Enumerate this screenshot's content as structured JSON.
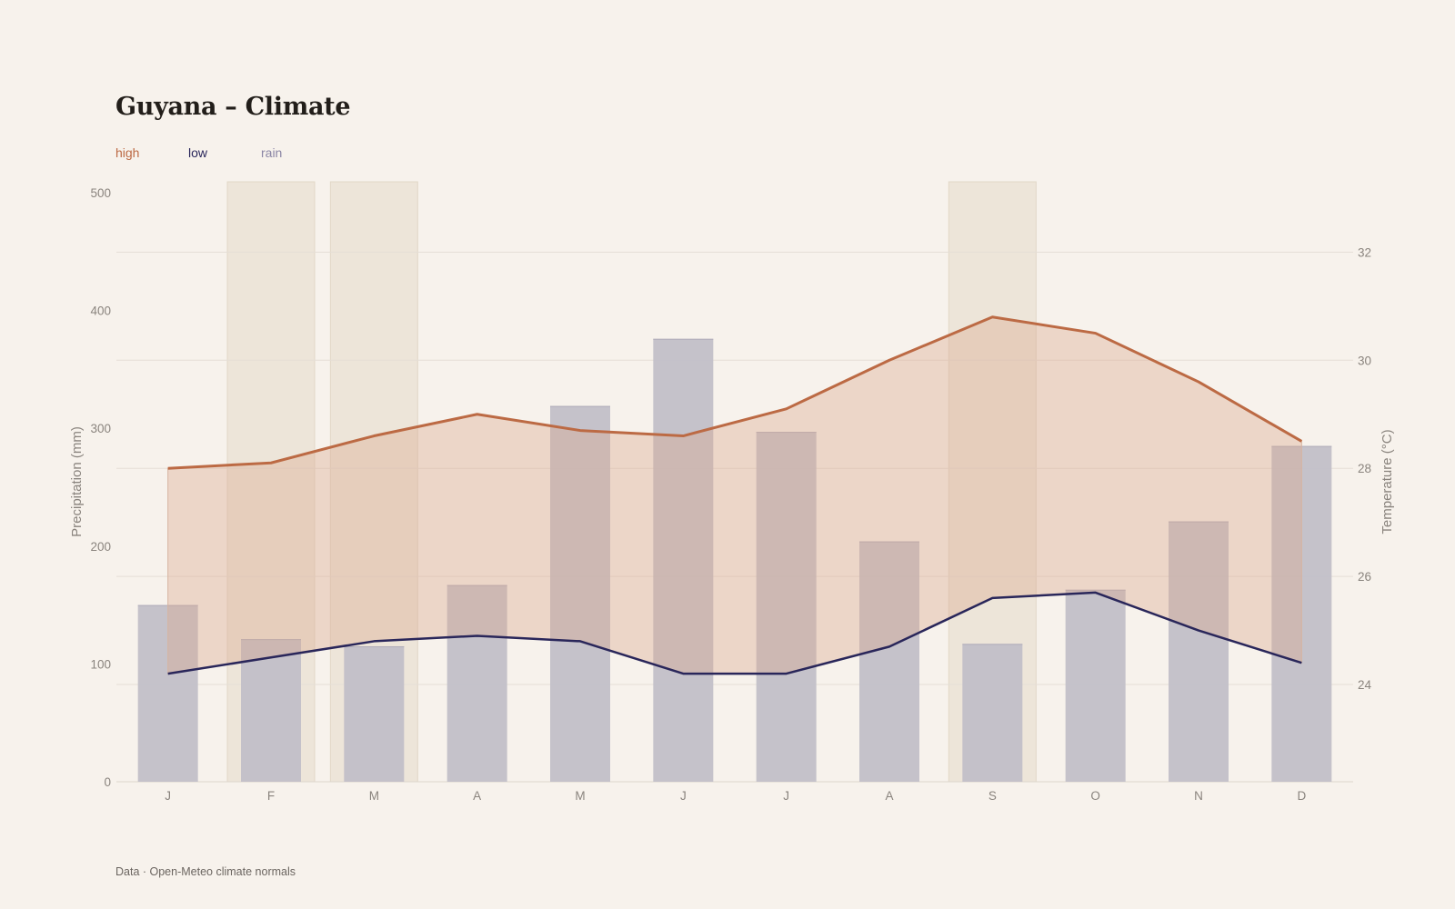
{
  "title": "Guyana – Climate",
  "footer": "Data · Open-Meteo climate normals",
  "legend": [
    {
      "key": "high",
      "label": "high",
      "color": "#bc6a44"
    },
    {
      "key": "low",
      "label": "low",
      "color": "#29265a"
    },
    {
      "key": "rain",
      "label": "rain",
      "color": "#8b86a5"
    }
  ],
  "colors": {
    "high": "#bc6a44",
    "low": "#29265a",
    "rain_bar": "#c2bfc8",
    "band_fill": "#e9d6cb",
    "highlight": "#ede5d9",
    "grid": "#e5ded6"
  },
  "chart_data": {
    "type": "bar",
    "categories": [
      "J",
      "F",
      "M",
      "A",
      "M",
      "J",
      "J",
      "A",
      "S",
      "O",
      "N",
      "D"
    ],
    "highlighted_categories": [
      1,
      2,
      8
    ],
    "y_left": {
      "label": "Precipitation (mm)",
      "ylim": [
        0,
        500
      ],
      "ticks": [
        0,
        100,
        200,
        300,
        400,
        500
      ]
    },
    "y_right": {
      "label": "Temperature (°C)",
      "ylim": [
        22.2,
        33.1
      ],
      "ticks": [
        24,
        26,
        28,
        30,
        32
      ]
    },
    "grid": true,
    "legend_position": "top-left",
    "series": [
      {
        "name": "rain",
        "type": "bar",
        "axis": "left",
        "values": [
          150,
          121,
          115,
          167,
          319,
          376,
          297,
          204,
          117,
          163,
          221,
          285
        ]
      },
      {
        "name": "high",
        "type": "line",
        "axis": "right",
        "values": [
          28.0,
          28.1,
          28.6,
          29.0,
          28.7,
          28.6,
          29.1,
          30.0,
          30.8,
          30.5,
          29.6,
          28.5
        ]
      },
      {
        "name": "low",
        "type": "line",
        "axis": "right",
        "values": [
          24.2,
          24.5,
          24.8,
          24.9,
          24.8,
          24.2,
          24.2,
          24.7,
          25.6,
          25.7,
          25.0,
          24.4
        ]
      }
    ]
  }
}
